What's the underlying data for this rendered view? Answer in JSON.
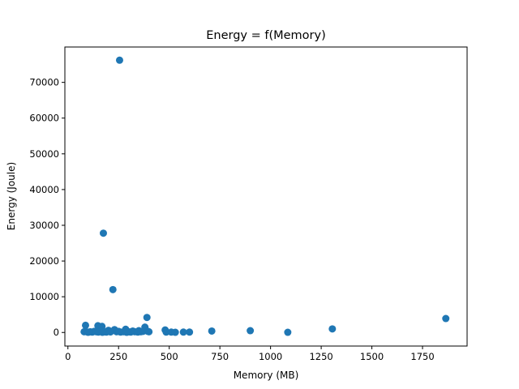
{
  "chart_data": {
    "type": "scatter",
    "title": "Energy = f(Memory)",
    "xlabel": "Memory (MB)",
    "ylabel": "Energy (Joule)",
    "xlim": [
      -15,
      1970
    ],
    "ylim": [
      -3800,
      79900
    ],
    "xticks": [
      0,
      250,
      500,
      750,
      1000,
      1250,
      1500,
      1750
    ],
    "xtick_labels": [
      "0",
      "250",
      "500",
      "750",
      "1000",
      "1250",
      "1500",
      "1750"
    ],
    "yticks": [
      0,
      10000,
      20000,
      30000,
      40000,
      50000,
      60000,
      70000
    ],
    "ytick_labels": [
      "0",
      "10000",
      "20000",
      "30000",
      "40000",
      "50000",
      "60000",
      "70000"
    ],
    "grid": false,
    "marker_color": "#1f77b4",
    "series": [
      {
        "points": [
          [
            255,
            76200
          ],
          [
            175,
            27800
          ],
          [
            222,
            12000
          ],
          [
            390,
            4200
          ],
          [
            1865,
            3900
          ],
          [
            87,
            2000
          ],
          [
            148,
            1900
          ],
          [
            168,
            1700
          ],
          [
            380,
            1500
          ],
          [
            1305,
            1000
          ],
          [
            285,
            900
          ],
          [
            230,
            800
          ],
          [
            480,
            700
          ],
          [
            900,
            500
          ],
          [
            350,
            500
          ],
          [
            710,
            400
          ],
          [
            200,
            600
          ],
          [
            320,
            400
          ],
          [
            160,
            300
          ],
          [
            130,
            300
          ],
          [
            80,
            200
          ],
          [
            95,
            150
          ],
          [
            110,
            200
          ],
          [
            120,
            100
          ],
          [
            140,
            200
          ],
          [
            150,
            100
          ],
          [
            180,
            200
          ],
          [
            190,
            100
          ],
          [
            210,
            150
          ],
          [
            240,
            200
          ],
          [
            260,
            100
          ],
          [
            275,
            200
          ],
          [
            300,
            200
          ],
          [
            310,
            100
          ],
          [
            330,
            200
          ],
          [
            345,
            100
          ],
          [
            360,
            200
          ],
          [
            370,
            300
          ],
          [
            395,
            300
          ],
          [
            400,
            200
          ],
          [
            485,
            100
          ],
          [
            510,
            100
          ],
          [
            530,
            50
          ],
          [
            570,
            100
          ],
          [
            600,
            100
          ],
          [
            1085,
            50
          ],
          [
            100,
            50
          ],
          [
            170,
            50
          ],
          [
            250,
            300
          ],
          [
            290,
            50
          ]
        ]
      }
    ]
  }
}
